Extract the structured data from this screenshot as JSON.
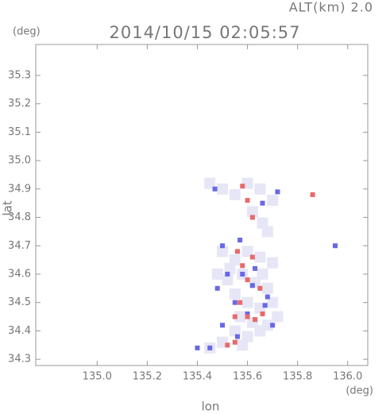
{
  "chart_data": {
    "type": "scatter",
    "title": "2014/10/15 02:05:57",
    "subtitle": "ALT(km)  2.0",
    "y_unit": "(deg)",
    "x_unit": "(deg)",
    "xlabel": "lon",
    "ylabel": "lat",
    "xlim": [
      134.755,
      136.08
    ],
    "ylim": [
      34.278,
      35.409
    ],
    "xticks": [
      {
        "value": 135,
        "label": "135.0"
      },
      135.2,
      135.4,
      135.6,
      135.8,
      {
        "value": 136,
        "label": "136.0"
      }
    ],
    "yticks": [
      35.3,
      35.2,
      35.1,
      {
        "value": 35,
        "label": "35.0"
      },
      34.9,
      34.8,
      34.7,
      34.6,
      34.5,
      34.4,
      34.3
    ],
    "series": [
      {
        "color": "#e6e6f6",
        "x": [
          135.45,
          135.5,
          135.55,
          135.6,
          135.65,
          135.7,
          135.62,
          135.66,
          135.68,
          135.5,
          135.55,
          135.6,
          135.65,
          135.7,
          135.48,
          135.52,
          135.58,
          135.63,
          135.68,
          135.55,
          135.6,
          135.65,
          135.7,
          135.57,
          135.62,
          135.68,
          135.55,
          135.6,
          135.65,
          135.5,
          135.45,
          135.58,
          135.53,
          135.66,
          135.72
        ],
        "values": [
          34.92,
          34.9,
          34.88,
          34.92,
          34.9,
          34.86,
          34.82,
          34.78,
          34.75,
          34.68,
          34.65,
          34.68,
          34.66,
          34.64,
          34.6,
          34.58,
          34.6,
          34.57,
          34.55,
          34.53,
          34.5,
          34.48,
          34.5,
          34.45,
          34.43,
          34.42,
          34.4,
          34.38,
          34.4,
          34.36,
          34.34,
          34.35,
          34.62,
          34.6,
          34.45
        ]
      },
      {
        "color": "#6868e8",
        "x": [
          135.47,
          135.72,
          135.66,
          135.5,
          135.57,
          135.95,
          135.52,
          135.58,
          135.62,
          135.48,
          135.55,
          135.68,
          135.6,
          135.7,
          135.5,
          135.4,
          135.45,
          135.63,
          135.67,
          135.56
        ],
        "values": [
          34.9,
          34.89,
          34.85,
          34.7,
          34.72,
          34.7,
          34.6,
          34.6,
          34.56,
          34.55,
          34.5,
          34.52,
          34.46,
          34.42,
          34.42,
          34.34,
          34.34,
          34.62,
          34.49,
          34.38
        ]
      },
      {
        "color": "#e86a6a",
        "x": [
          135.58,
          135.6,
          135.62,
          135.86,
          135.56,
          135.62,
          135.58,
          135.6,
          135.65,
          135.55,
          135.6,
          135.63,
          135.52,
          135.55,
          135.66,
          135.57
        ],
        "values": [
          34.91,
          34.86,
          34.8,
          34.88,
          34.68,
          34.66,
          34.63,
          34.58,
          34.55,
          34.45,
          34.45,
          34.44,
          34.35,
          34.36,
          34.46,
          34.5
        ]
      }
    ]
  }
}
